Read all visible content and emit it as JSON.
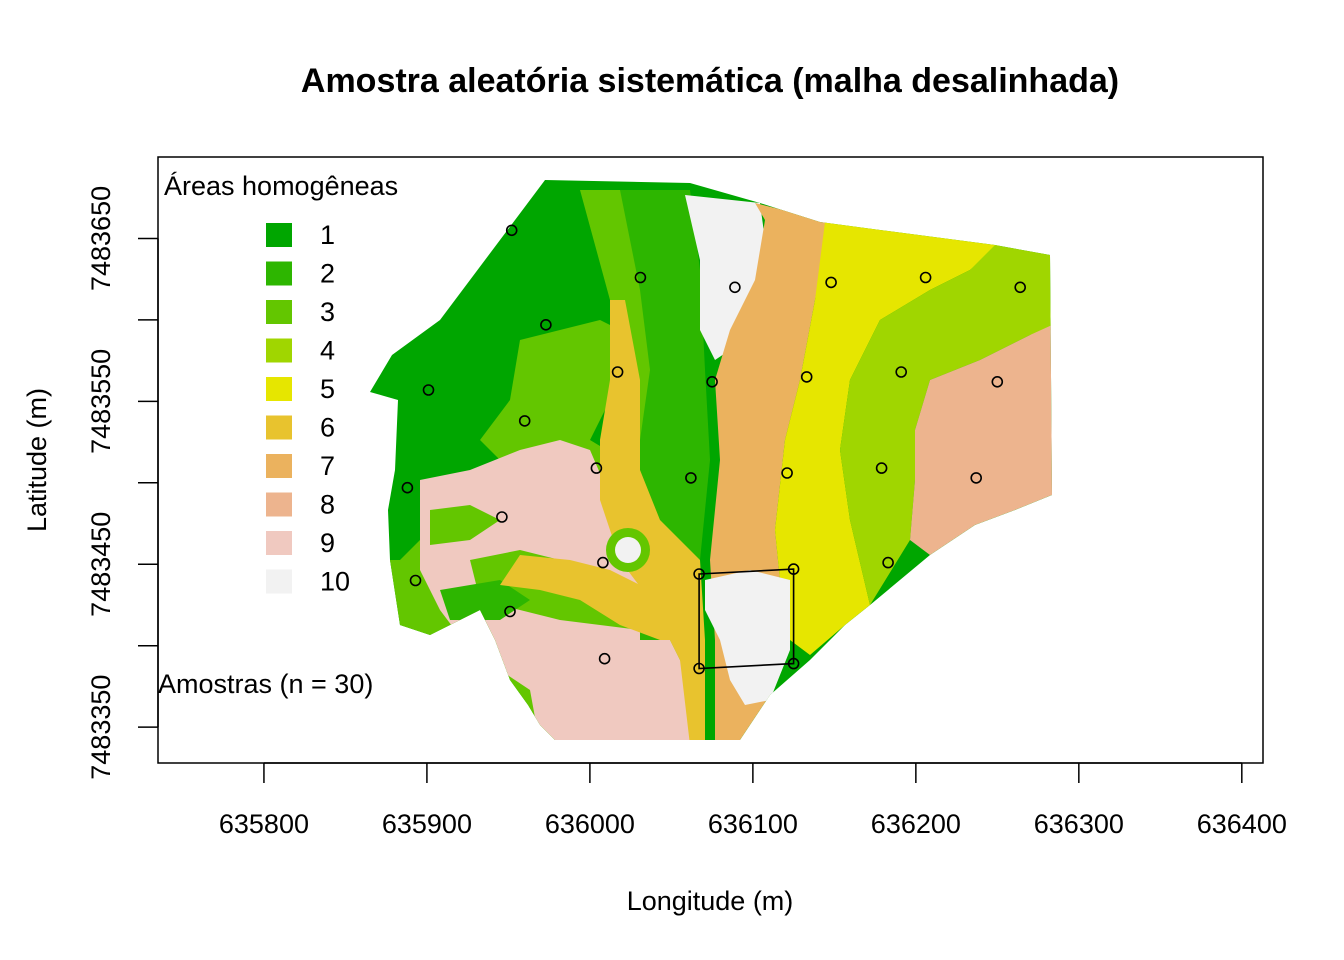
{
  "chart_data": {
    "type": "scatter",
    "title": "Amostra aleatória sistemática (malha desalinhada)",
    "xlabel": "Longitude (m)",
    "ylabel": "Latitude (m)",
    "xlim": [
      635735,
      636413
    ],
    "ylim": [
      7483328,
      7483700
    ],
    "x_ticks": [
      635800,
      635900,
      636000,
      636100,
      636200,
      636300,
      636400
    ],
    "x_tick_labels": [
      "635800",
      "635900",
      "636000",
      "636100",
      "636200",
      "636300",
      "636400"
    ],
    "y_ticks": [
      7483350,
      7483400,
      7483450,
      7483500,
      7483550,
      7483600,
      7483650
    ],
    "y_tick_labels": [
      "7483350",
      "",
      "7483450",
      "",
      "7483550",
      "",
      "7483650"
    ],
    "legend": {
      "title": "Áreas homogêneas",
      "placement": "top-left",
      "entries": [
        {
          "label": "1",
          "color": "#00A600"
        },
        {
          "label": "2",
          "color": "#2DB600"
        },
        {
          "label": "3",
          "color": "#63C600"
        },
        {
          "label": "4",
          "color": "#A0D600"
        },
        {
          "label": "5",
          "color": "#E6E600"
        },
        {
          "label": "6",
          "color": "#E8C32E"
        },
        {
          "label": "7",
          "color": "#EBB25E"
        },
        {
          "label": "8",
          "color": "#EDB48E"
        },
        {
          "label": "9",
          "color": "#F0C9C0"
        },
        {
          "label": "10",
          "color": "#F2F2F2"
        }
      ]
    },
    "annotation": "Amostras (n = 30)",
    "points": [
      {
        "x": 635952,
        "y": 7483655
      },
      {
        "x": 636031,
        "y": 7483626
      },
      {
        "x": 636089,
        "y": 7483620
      },
      {
        "x": 636148,
        "y": 7483623
      },
      {
        "x": 636206,
        "y": 7483626
      },
      {
        "x": 636264,
        "y": 7483620
      },
      {
        "x": 635973,
        "y": 7483597
      },
      {
        "x": 636017,
        "y": 7483568
      },
      {
        "x": 636075,
        "y": 7483562
      },
      {
        "x": 636133,
        "y": 7483565
      },
      {
        "x": 636191,
        "y": 7483568
      },
      {
        "x": 636250,
        "y": 7483562
      },
      {
        "x": 635901,
        "y": 7483557
      },
      {
        "x": 635960,
        "y": 7483538
      },
      {
        "x": 636004,
        "y": 7483509
      },
      {
        "x": 636062,
        "y": 7483503
      },
      {
        "x": 636121,
        "y": 7483506
      },
      {
        "x": 636179,
        "y": 7483509
      },
      {
        "x": 636237,
        "y": 7483503
      },
      {
        "x": 635888,
        "y": 7483497
      },
      {
        "x": 635946,
        "y": 7483479
      },
      {
        "x": 636008,
        "y": 7483451
      },
      {
        "x": 636067,
        "y": 7483444
      },
      {
        "x": 636125,
        "y": 7483447
      },
      {
        "x": 636183,
        "y": 7483451
      },
      {
        "x": 635893,
        "y": 7483440
      },
      {
        "x": 635951,
        "y": 7483421
      },
      {
        "x": 636009,
        "y": 7483392
      },
      {
        "x": 636067,
        "y": 7483386
      },
      {
        "x": 636125,
        "y": 7483389
      }
    ],
    "highlight_cell": [
      [
        636067,
        7483444
      ],
      [
        636125,
        7483447
      ],
      [
        636125,
        7483389
      ],
      [
        636067,
        7483386
      ]
    ]
  }
}
